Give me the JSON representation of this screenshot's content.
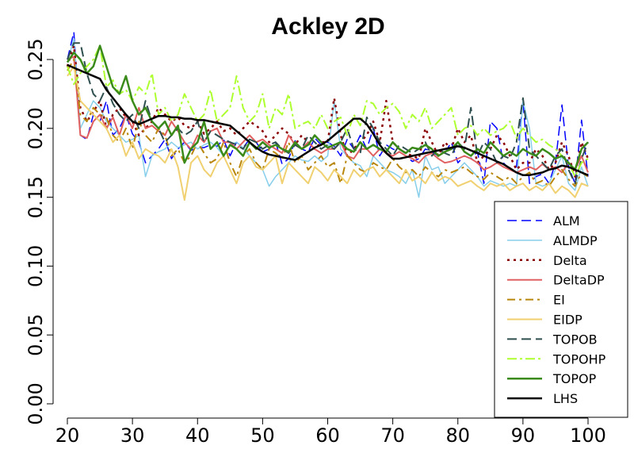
{
  "chart_data": {
    "type": "line",
    "title": "Ackley 2D",
    "xlabel": "",
    "ylabel": "",
    "xlim": [
      20,
      100
    ],
    "ylim": [
      0,
      0.25
    ],
    "x_ticks": [
      20,
      30,
      40,
      50,
      60,
      70,
      80,
      90,
      100
    ],
    "y_ticks": [
      "0.00",
      "0.05",
      "0.10",
      "0.15",
      "0.20",
      "0.25"
    ],
    "legend_position": "bottom-right",
    "grid": false,
    "x": [
      20,
      21,
      22,
      23,
      24,
      25,
      26,
      27,
      28,
      29,
      30,
      31,
      32,
      33,
      34,
      35,
      36,
      37,
      38,
      39,
      40,
      41,
      42,
      43,
      44,
      45,
      46,
      47,
      48,
      49,
      50,
      51,
      52,
      53,
      54,
      55,
      56,
      57,
      58,
      59,
      60,
      61,
      62,
      63,
      64,
      65,
      66,
      67,
      68,
      69,
      70,
      71,
      72,
      73,
      74,
      75,
      76,
      77,
      78,
      79,
      80,
      81,
      82,
      83,
      84,
      85,
      86,
      87,
      88,
      89,
      90,
      91,
      92,
      93,
      94,
      95,
      96,
      97,
      98,
      99,
      100
    ],
    "series": [
      {
        "name": "ALM",
        "color": "#0000ff",
        "dash": "12,6",
        "width": 1.5,
        "values": [
          0.25,
          0.27,
          0.195,
          0.192,
          0.21,
          0.205,
          0.22,
          0.195,
          0.2,
          0.21,
          0.196,
          0.19,
          0.175,
          0.18,
          0.185,
          0.192,
          0.178,
          0.185,
          0.19,
          0.184,
          0.186,
          0.186,
          0.188,
          0.187,
          0.192,
          0.18,
          0.19,
          0.186,
          0.192,
          0.19,
          0.183,
          0.185,
          0.19,
          0.174,
          0.178,
          0.191,
          0.185,
          0.183,
          0.193,
          0.188,
          0.19,
          0.187,
          0.18,
          0.192,
          0.185,
          0.195,
          0.185,
          0.2,
          0.18,
          0.188,
          0.185,
          0.183,
          0.18,
          0.176,
          0.178,
          0.185,
          0.183,
          0.18,
          0.182,
          0.19,
          0.175,
          0.18,
          0.178,
          0.183,
          0.16,
          0.205,
          0.2,
          0.175,
          0.17,
          0.172,
          0.22,
          0.16,
          0.165,
          0.167,
          0.16,
          0.175,
          0.217,
          0.172,
          0.16,
          0.206,
          0.165
        ]
      },
      {
        "name": "ALMDP",
        "color": "#87ceeb",
        "dash": "",
        "width": 1.5,
        "values": [
          0.248,
          0.265,
          0.2,
          0.21,
          0.22,
          0.215,
          0.205,
          0.2,
          0.195,
          0.19,
          0.192,
          0.195,
          0.165,
          0.18,
          0.183,
          0.185,
          0.19,
          0.186,
          0.188,
          0.19,
          0.185,
          0.188,
          0.19,
          0.186,
          0.18,
          0.188,
          0.19,
          0.186,
          0.18,
          0.175,
          0.17,
          0.158,
          0.165,
          0.17,
          0.175,
          0.18,
          0.177,
          0.176,
          0.18,
          0.176,
          0.18,
          0.22,
          0.185,
          0.18,
          0.175,
          0.173,
          0.165,
          0.18,
          0.175,
          0.17,
          0.168,
          0.165,
          0.16,
          0.17,
          0.15,
          0.18,
          0.17,
          0.172,
          0.16,
          0.165,
          0.17,
          0.175,
          0.17,
          0.165,
          0.158,
          0.162,
          0.16,
          0.158,
          0.16,
          0.158,
          0.22,
          0.2,
          0.16,
          0.158,
          0.16,
          0.17,
          0.18,
          0.16,
          0.155,
          0.172,
          0.158
        ]
      },
      {
        "name": "Delta",
        "color": "#8b0000",
        "dash": "3,5",
        "width": 2.5,
        "values": [
          0.245,
          0.26,
          0.215,
          0.205,
          0.212,
          0.22,
          0.2,
          0.21,
          0.215,
          0.208,
          0.205,
          0.195,
          0.2,
          0.205,
          0.215,
          0.21,
          0.205,
          0.208,
          0.202,
          0.2,
          0.205,
          0.196,
          0.2,
          0.205,
          0.198,
          0.2,
          0.195,
          0.2,
          0.205,
          0.202,
          0.198,
          0.19,
          0.195,
          0.2,
          0.196,
          0.188,
          0.195,
          0.19,
          0.185,
          0.19,
          0.19,
          0.222,
          0.195,
          0.18,
          0.185,
          0.19,
          0.195,
          0.205,
          0.19,
          0.22,
          0.19,
          0.185,
          0.182,
          0.18,
          0.178,
          0.2,
          0.19,
          0.18,
          0.19,
          0.185,
          0.2,
          0.19,
          0.195,
          0.175,
          0.18,
          0.185,
          0.195,
          0.19,
          0.18,
          0.17,
          0.175,
          0.175,
          0.185,
          0.18,
          0.17,
          0.175,
          0.19,
          0.18,
          0.165,
          0.19,
          0.178
        ]
      },
      {
        "name": "DeltaDP",
        "color": "#e06060",
        "dash": "",
        "width": 2,
        "values": [
          0.25,
          0.252,
          0.195,
          0.193,
          0.205,
          0.21,
          0.2,
          0.208,
          0.195,
          0.21,
          0.2,
          0.215,
          0.2,
          0.202,
          0.198,
          0.195,
          0.205,
          0.198,
          0.19,
          0.185,
          0.195,
          0.19,
          0.198,
          0.2,
          0.19,
          0.19,
          0.185,
          0.19,
          0.195,
          0.19,
          0.192,
          0.188,
          0.185,
          0.182,
          0.195,
          0.188,
          0.185,
          0.19,
          0.185,
          0.182,
          0.185,
          0.185,
          0.19,
          0.18,
          0.178,
          0.185,
          0.185,
          0.18,
          0.185,
          0.182,
          0.18,
          0.183,
          0.18,
          0.178,
          0.175,
          0.18,
          0.182,
          0.178,
          0.175,
          0.176,
          0.178,
          0.18,
          0.178,
          0.175,
          0.17,
          0.172,
          0.175,
          0.172,
          0.17,
          0.168,
          0.17,
          0.172,
          0.17,
          0.174,
          0.17,
          0.172,
          0.168,
          0.175,
          0.17,
          0.18,
          0.168
        ]
      },
      {
        "name": "EI",
        "color": "#b8860b",
        "dash": "10,5,3,5",
        "width": 2,
        "values": [
          0.242,
          0.25,
          0.21,
          0.205,
          0.215,
          0.21,
          0.208,
          0.195,
          0.19,
          0.2,
          0.185,
          0.205,
          0.195,
          0.19,
          0.2,
          0.195,
          0.18,
          0.185,
          0.175,
          0.18,
          0.19,
          0.182,
          0.175,
          0.178,
          0.19,
          0.175,
          0.165,
          0.18,
          0.185,
          0.175,
          0.17,
          0.185,
          0.182,
          0.178,
          0.19,
          0.175,
          0.18,
          0.17,
          0.175,
          0.18,
          0.172,
          0.175,
          0.16,
          0.18,
          0.175,
          0.17,
          0.168,
          0.175,
          0.172,
          0.17,
          0.178,
          0.172,
          0.168,
          0.17,
          0.165,
          0.172,
          0.168,
          0.165,
          0.17,
          0.168,
          0.17,
          0.172,
          0.168,
          0.165,
          0.163,
          0.168,
          0.165,
          0.162,
          0.165,
          0.16,
          0.165,
          0.168,
          0.16,
          0.162,
          0.158,
          0.165,
          0.17,
          0.163,
          0.158,
          0.168,
          0.165
        ]
      },
      {
        "name": "EIDP",
        "color": "#f0d070",
        "dash": "",
        "width": 2,
        "values": [
          0.238,
          0.245,
          0.22,
          0.215,
          0.21,
          0.205,
          0.2,
          0.19,
          0.195,
          0.18,
          0.19,
          0.178,
          0.185,
          0.182,
          0.18,
          0.175,
          0.185,
          0.172,
          0.148,
          0.175,
          0.18,
          0.17,
          0.165,
          0.175,
          0.18,
          0.17,
          0.16,
          0.175,
          0.18,
          0.172,
          0.17,
          0.175,
          0.18,
          0.16,
          0.175,
          0.17,
          0.165,
          0.16,
          0.172,
          0.168,
          0.162,
          0.17,
          0.165,
          0.16,
          0.17,
          0.165,
          0.17,
          0.172,
          0.165,
          0.17,
          0.165,
          0.16,
          0.17,
          0.162,
          0.165,
          0.16,
          0.168,
          0.162,
          0.165,
          0.163,
          0.158,
          0.16,
          0.162,
          0.158,
          0.155,
          0.16,
          0.158,
          0.16,
          0.155,
          0.158,
          0.16,
          0.155,
          0.158,
          0.155,
          0.16,
          0.153,
          0.158,
          0.155,
          0.15,
          0.16,
          0.158
        ]
      },
      {
        "name": "TOPOB",
        "color": "#2f4f4f",
        "dash": "12,6",
        "width": 2,
        "values": [
          0.25,
          0.262,
          0.262,
          0.24,
          0.225,
          0.22,
          0.23,
          0.218,
          0.21,
          0.205,
          0.21,
          0.2,
          0.22,
          0.205,
          0.2,
          0.19,
          0.195,
          0.2,
          0.195,
          0.198,
          0.205,
          0.19,
          0.198,
          0.195,
          0.192,
          0.19,
          0.188,
          0.185,
          0.192,
          0.19,
          0.185,
          0.188,
          0.19,
          0.185,
          0.182,
          0.188,
          0.185,
          0.195,
          0.19,
          0.185,
          0.188,
          0.185,
          0.19,
          0.2,
          0.185,
          0.182,
          0.208,
          0.2,
          0.19,
          0.185,
          0.18,
          0.188,
          0.185,
          0.182,
          0.185,
          0.19,
          0.18,
          0.185,
          0.182,
          0.18,
          0.19,
          0.185,
          0.215,
          0.18,
          0.19,
          0.185,
          0.175,
          0.18,
          0.178,
          0.19,
          0.222,
          0.185,
          0.18,
          0.175,
          0.17,
          0.18,
          0.185,
          0.17,
          0.16,
          0.178,
          0.19
        ]
      },
      {
        "name": "TOPOHP",
        "color": "#adff2f",
        "dash": "12,4,3,4",
        "width": 2,
        "values": [
          0.245,
          0.232,
          0.24,
          0.245,
          0.25,
          0.26,
          0.23,
          0.235,
          0.225,
          0.228,
          0.22,
          0.23,
          0.225,
          0.24,
          0.21,
          0.215,
          0.205,
          0.21,
          0.225,
          0.215,
          0.205,
          0.21,
          0.228,
          0.205,
          0.21,
          0.215,
          0.238,
          0.215,
          0.205,
          0.21,
          0.225,
          0.2,
          0.215,
          0.21,
          0.225,
          0.2,
          0.203,
          0.205,
          0.2,
          0.21,
          0.2,
          0.205,
          0.208,
          0.195,
          0.21,
          0.202,
          0.22,
          0.218,
          0.21,
          0.215,
          0.218,
          0.212,
          0.2,
          0.21,
          0.205,
          0.215,
          0.2,
          0.205,
          0.21,
          0.215,
          0.195,
          0.2,
          0.202,
          0.195,
          0.2,
          0.195,
          0.198,
          0.2,
          0.205,
          0.193,
          0.2,
          0.195,
          0.19,
          0.192,
          0.188,
          0.185,
          0.18,
          0.175,
          0.165,
          0.175,
          0.178
        ]
      },
      {
        "name": "TOPOP",
        "color": "#3a8a1a",
        "dash": "",
        "width": 2.5,
        "values": [
          0.248,
          0.255,
          0.25,
          0.24,
          0.245,
          0.26,
          0.245,
          0.23,
          0.225,
          0.238,
          0.22,
          0.21,
          0.215,
          0.205,
          0.2,
          0.205,
          0.195,
          0.202,
          0.175,
          0.185,
          0.19,
          0.205,
          0.185,
          0.19,
          0.18,
          0.188,
          0.185,
          0.18,
          0.19,
          0.185,
          0.19,
          0.186,
          0.188,
          0.185,
          0.183,
          0.19,
          0.185,
          0.188,
          0.195,
          0.19,
          0.186,
          0.188,
          0.19,
          0.185,
          0.183,
          0.19,
          0.185,
          0.188,
          0.185,
          0.183,
          0.19,
          0.185,
          0.182,
          0.186,
          0.185,
          0.188,
          0.185,
          0.18,
          0.183,
          0.185,
          0.19,
          0.183,
          0.18,
          0.185,
          0.182,
          0.19,
          0.185,
          0.18,
          0.183,
          0.18,
          0.185,
          0.182,
          0.18,
          0.185,
          0.182,
          0.178,
          0.18,
          0.175,
          0.17,
          0.185,
          0.19
        ]
      },
      {
        "name": "LHS",
        "color": "#000000",
        "dash": "",
        "width": 2.5,
        "values": [
          0.246,
          0.244,
          0.242,
          0.24,
          0.238,
          0.236,
          0.228,
          0.222,
          0.216,
          0.21,
          0.205,
          0.203,
          0.205,
          0.207,
          0.209,
          0.209,
          0.208,
          0.208,
          0.207,
          0.207,
          0.206,
          0.206,
          0.205,
          0.204,
          0.203,
          0.202,
          0.198,
          0.194,
          0.19,
          0.186,
          0.183,
          0.181,
          0.18,
          0.179,
          0.178,
          0.177,
          0.18,
          0.183,
          0.186,
          0.188,
          0.191,
          0.195,
          0.199,
          0.203,
          0.207,
          0.207,
          0.203,
          0.196,
          0.188,
          0.182,
          0.178,
          0.178,
          0.179,
          0.18,
          0.181,
          0.182,
          0.183,
          0.184,
          0.185,
          0.186,
          0.187,
          0.186,
          0.184,
          0.182,
          0.18,
          0.178,
          0.176,
          0.174,
          0.171,
          0.168,
          0.166,
          0.166,
          0.167,
          0.168,
          0.17,
          0.171,
          0.173,
          0.172,
          0.17,
          0.168,
          0.166
        ]
      }
    ]
  }
}
